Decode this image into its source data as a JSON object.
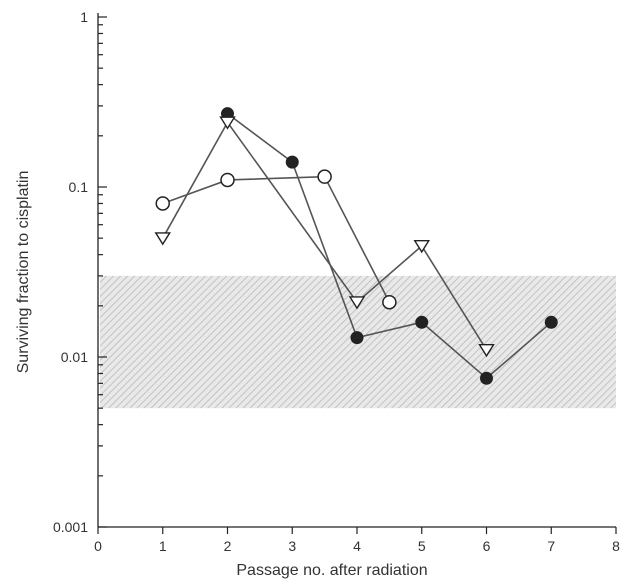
{
  "chart_data": {
    "type": "scatter",
    "xlabel": "Passage no. after radiation",
    "ylabel": "Surviving fraction to cisplatin",
    "xlim": [
      0,
      8
    ],
    "ylim": [
      0.001,
      1
    ],
    "yscale": "log",
    "x_ticks": [
      0,
      1,
      2,
      3,
      4,
      5,
      6,
      7,
      8
    ],
    "x_tick_labels": [
      "0",
      "1",
      "2",
      "3",
      "4",
      "5",
      "6",
      "7",
      "8"
    ],
    "y_major_ticks": [
      0.001,
      0.01,
      0.1,
      1
    ],
    "y_tick_labels": [
      "0.001",
      "0.01",
      "0.1",
      "1"
    ],
    "grid": false,
    "shaded_band": {
      "y_from": 0.005,
      "y_to": 0.03,
      "pattern": "diagonal hatch"
    },
    "series": [
      {
        "marker": "filled-circle",
        "color": "#222222",
        "x": [
          2,
          3,
          4,
          5,
          6,
          7
        ],
        "y": [
          0.27,
          0.14,
          0.013,
          0.016,
          0.0075,
          0.016
        ]
      },
      {
        "marker": "open-circle",
        "color": "#222222",
        "x": [
          1,
          2,
          3.5,
          4.5
        ],
        "y": [
          0.08,
          0.11,
          0.115,
          0.021
        ]
      },
      {
        "marker": "open-triangle-down",
        "color": "#222222",
        "x": [
          1,
          2,
          4,
          5,
          6
        ],
        "y": [
          0.05,
          0.24,
          0.021,
          0.045,
          0.011
        ]
      }
    ]
  }
}
